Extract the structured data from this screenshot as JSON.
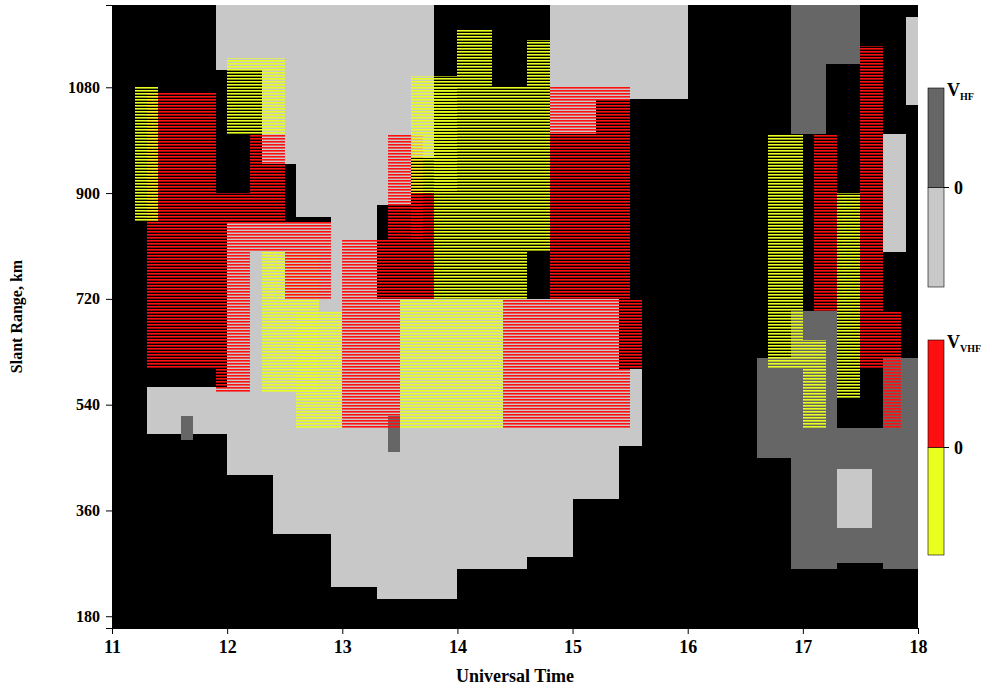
{
  "chart_data": {
    "type": "range_time",
    "x_label": "Universal Time",
    "y_label": "Slant Range, km",
    "xlim": [
      11,
      18
    ],
    "xticks": [
      11,
      12,
      13,
      14,
      15,
      16,
      17,
      18
    ],
    "ylim": [
      160,
      1220
    ],
    "yticks": [
      180,
      360,
      540,
      720,
      900,
      1080
    ],
    "series": [
      {
        "label": "V",
        "label_sub": "HF",
        "colors": [
          "#c8c8c8",
          "#666666"
        ],
        "crange": [
          -1,
          1
        ],
        "cticks": [
          0
        ],
        "cells": [
          [
            11.3,
            12.0,
            490,
            570,
            -0.5
          ],
          [
            12.0,
            12.4,
            420,
            850,
            -0.5
          ],
          [
            12.4,
            12.9,
            320,
            850,
            -0.5
          ],
          [
            12.9,
            13.3,
            230,
            820,
            -0.5
          ],
          [
            13.3,
            14.0,
            210,
            720,
            -0.5
          ],
          [
            14.0,
            14.6,
            260,
            720,
            -0.5
          ],
          [
            14.6,
            15.0,
            280,
            720,
            -0.5
          ],
          [
            15.0,
            15.4,
            380,
            720,
            -0.5
          ],
          [
            15.4,
            15.6,
            470,
            600,
            -0.5
          ],
          [
            12.3,
            12.6,
            950,
            1220,
            -0.5
          ],
          [
            12.6,
            12.9,
            860,
            1220,
            -0.5
          ],
          [
            12.9,
            13.3,
            820,
            1220,
            -0.5
          ],
          [
            13.3,
            13.6,
            880,
            1220,
            -0.5
          ],
          [
            13.6,
            13.8,
            960,
            1220,
            -0.5
          ],
          [
            11.9,
            12.3,
            1110,
            1220,
            -0.5
          ],
          [
            14.8,
            15.2,
            1000,
            1220,
            -0.5
          ],
          [
            15.2,
            16.0,
            1060,
            1220,
            -0.5
          ],
          [
            16.6,
            16.9,
            450,
            620,
            0.5
          ],
          [
            16.9,
            17.3,
            260,
            700,
            0.5
          ],
          [
            17.3,
            17.7,
            270,
            500,
            0.5
          ],
          [
            17.7,
            18.0,
            260,
            620,
            0.5
          ],
          [
            16.9,
            17.2,
            1000,
            1220,
            0.5
          ],
          [
            17.2,
            17.5,
            1120,
            1220,
            0.5
          ],
          [
            17.3,
            17.6,
            330,
            430,
            -0.5
          ],
          [
            17.7,
            17.9,
            800,
            1000,
            -0.5
          ],
          [
            17.9,
            18.0,
            1050,
            1200,
            -0.5
          ],
          [
            11.6,
            11.7,
            480,
            520,
            0.5
          ],
          [
            13.4,
            13.5,
            460,
            520,
            0.5
          ]
        ]
      },
      {
        "label": "V",
        "label_sub": "VHF",
        "colors": [
          "#e8ff20",
          "#ff1010"
        ],
        "crange": [
          -1,
          1
        ],
        "cticks": [
          0
        ],
        "cells": [
          [
            11.3,
            11.9,
            600,
            1070,
            0.5
          ],
          [
            11.2,
            11.4,
            850,
            1080,
            -0.5
          ],
          [
            11.9,
            12.2,
            560,
            900,
            0.5
          ],
          [
            12.0,
            12.5,
            1000,
            1130,
            -0.5
          ],
          [
            12.2,
            12.5,
            800,
            1000,
            0.5
          ],
          [
            12.3,
            12.8,
            560,
            800,
            -0.5
          ],
          [
            12.5,
            12.9,
            720,
            850,
            0.5
          ],
          [
            12.6,
            13.0,
            500,
            700,
            -0.5
          ],
          [
            13.0,
            13.3,
            500,
            720,
            0.5
          ],
          [
            13.3,
            13.5,
            500,
            720,
            0.5
          ],
          [
            13.5,
            14.4,
            500,
            720,
            -0.5
          ],
          [
            14.4,
            15.5,
            500,
            720,
            0.5
          ],
          [
            13.0,
            13.6,
            720,
            820,
            0.5
          ],
          [
            13.4,
            13.7,
            820,
            1000,
            0.5
          ],
          [
            13.6,
            14.0,
            900,
            1100,
            -0.5
          ],
          [
            13.6,
            13.8,
            720,
            900,
            0.5
          ],
          [
            13.8,
            14.6,
            720,
            1080,
            -0.5
          ],
          [
            14.0,
            14.3,
            1080,
            1180,
            -0.5
          ],
          [
            14.6,
            14.8,
            800,
            1160,
            -0.5
          ],
          [
            14.8,
            15.5,
            720,
            1080,
            0.5
          ],
          [
            15.5,
            15.6,
            600,
            720,
            0.5
          ],
          [
            16.7,
            17.0,
            600,
            1000,
            -0.5
          ],
          [
            17.0,
            17.2,
            500,
            650,
            -0.5
          ],
          [
            17.1,
            17.3,
            700,
            1000,
            0.5
          ],
          [
            17.3,
            17.5,
            550,
            900,
            -0.5
          ],
          [
            17.5,
            17.7,
            600,
            1150,
            0.5
          ],
          [
            17.7,
            17.85,
            500,
            700,
            0.5
          ]
        ]
      }
    ]
  }
}
